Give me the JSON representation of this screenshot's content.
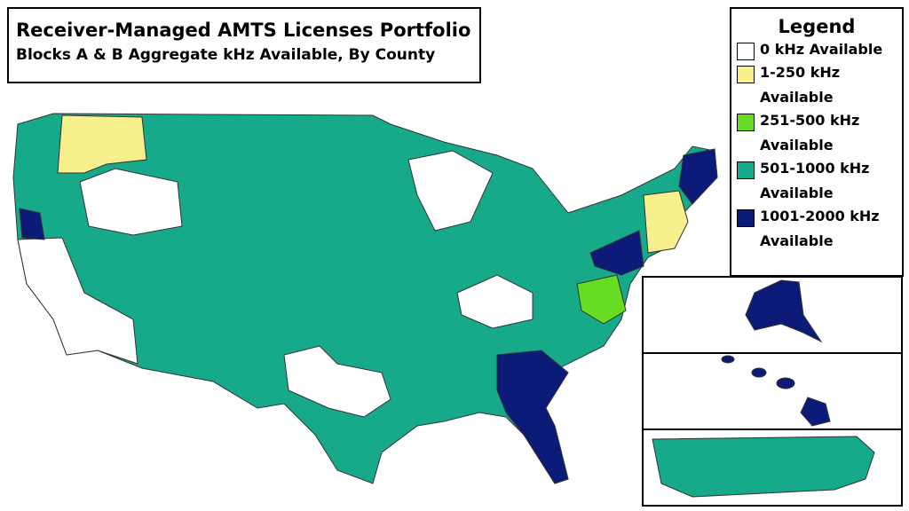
{
  "header": {
    "title": "Receiver-Managed AMTS Licenses Portfolio",
    "subtitle": "Blocks A & B Aggregate kHz Available, By County"
  },
  "legend": {
    "title": "Legend",
    "items": [
      {
        "label": "0 kHz Available",
        "color": "#ffffff"
      },
      {
        "label": "1-250 kHz Available",
        "color": "#f7f08c"
      },
      {
        "label": "251-500 kHz Available",
        "color": "#66dd22"
      },
      {
        "label": "501-1000 kHz Available",
        "color": "#16a98a"
      },
      {
        "label": "1001-2000 kHz Available",
        "color": "#0c1a78"
      }
    ]
  }
}
